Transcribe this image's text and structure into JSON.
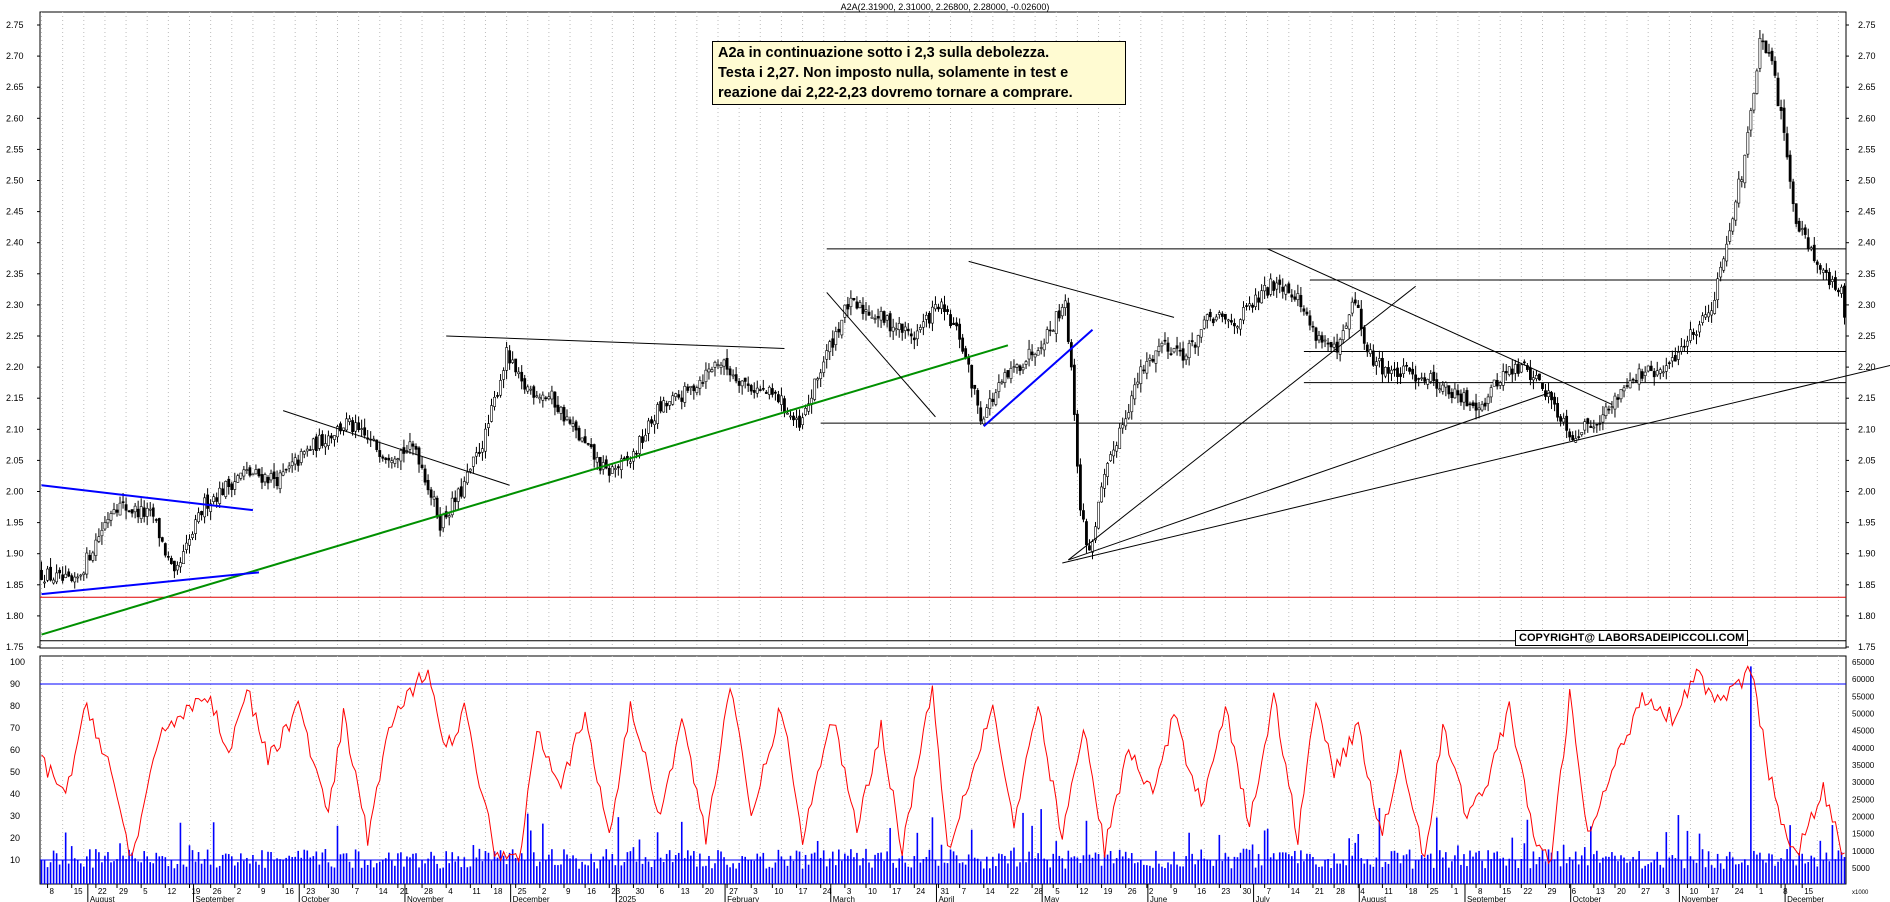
{
  "header": {
    "title": "A2A(2.31900, 2.31000, 2.26800, 2.28000, -0.02600)"
  },
  "annotation": {
    "lines": [
      "A2a in continuazione sotto i 2,3 sulla debolezza.",
      "Testa  i 2,27. Non imposto nulla, solamente in test e",
      "reazione dai 2,22-2,23 dovremo tornare a comprare."
    ]
  },
  "copyright": "COPYRIGHT@ LABORSADEIPICCOLI.COM",
  "colors": {
    "support_line": "#e00000",
    "trend_up": "#009000",
    "channel": "#0000ff",
    "oscillator": "#ff0000",
    "volume": "#0000ff",
    "grid": "#bdbdbd"
  },
  "chart_data": [
    {
      "type": "candlestick",
      "title": "A2A",
      "ylim": [
        1.75,
        2.75
      ],
      "y_ticks": [
        "1.75",
        "1.80",
        "1.85",
        "1.90",
        "1.95",
        "2.00",
        "2.05",
        "2.10",
        "2.15",
        "2.20",
        "2.25",
        "2.30",
        "2.35",
        "2.40",
        "2.45",
        "2.50",
        "2.55",
        "2.60",
        "2.65",
        "2.70",
        "2.75"
      ],
      "anchors": [
        [
          0,
          1.87
        ],
        [
          12,
          1.85
        ],
        [
          25,
          1.98
        ],
        [
          38,
          1.96
        ],
        [
          45,
          1.86
        ],
        [
          55,
          1.98
        ],
        [
          68,
          2.03
        ],
        [
          80,
          2.02
        ],
        [
          90,
          2.07
        ],
        [
          102,
          2.11
        ],
        [
          115,
          2.06
        ],
        [
          125,
          2.07
        ],
        [
          133,
          1.95
        ],
        [
          140,
          2.0
        ],
        [
          148,
          2.09
        ],
        [
          155,
          2.22
        ],
        [
          160,
          2.17
        ],
        [
          170,
          2.15
        ],
        [
          180,
          2.08
        ],
        [
          188,
          2.03
        ],
        [
          196,
          2.05
        ],
        [
          205,
          2.13
        ],
        [
          215,
          2.16
        ],
        [
          225,
          2.21
        ],
        [
          235,
          2.17
        ],
        [
          245,
          2.15
        ],
        [
          252,
          2.1
        ],
        [
          260,
          2.21
        ],
        [
          268,
          2.3
        ],
        [
          275,
          2.29
        ],
        [
          282,
          2.27
        ],
        [
          290,
          2.25
        ],
        [
          298,
          2.3
        ],
        [
          305,
          2.25
        ],
        [
          312,
          2.12
        ],
        [
          320,
          2.18
        ],
        [
          328,
          2.22
        ],
        [
          335,
          2.26
        ],
        [
          340,
          2.31
        ],
        [
          343,
          2.13
        ],
        [
          345,
          1.97
        ],
        [
          348,
          1.9
        ],
        [
          352,
          2.0
        ],
        [
          358,
          2.1
        ],
        [
          365,
          2.19
        ],
        [
          372,
          2.24
        ],
        [
          380,
          2.22
        ],
        [
          388,
          2.28
        ],
        [
          396,
          2.27
        ],
        [
          404,
          2.31
        ],
        [
          410,
          2.34
        ],
        [
          416,
          2.32
        ],
        [
          422,
          2.26
        ],
        [
          430,
          2.22
        ],
        [
          436,
          2.31
        ],
        [
          440,
          2.22
        ],
        [
          448,
          2.19
        ],
        [
          455,
          2.19
        ],
        [
          462,
          2.18
        ],
        [
          470,
          2.15
        ],
        [
          478,
          2.14
        ],
        [
          485,
          2.19
        ],
        [
          492,
          2.2
        ],
        [
          498,
          2.17
        ],
        [
          503,
          2.13
        ],
        [
          508,
          2.09
        ],
        [
          514,
          2.11
        ],
        [
          520,
          2.13
        ],
        [
          526,
          2.18
        ],
        [
          532,
          2.19
        ],
        [
          538,
          2.19
        ],
        [
          545,
          2.24
        ],
        [
          550,
          2.27
        ],
        [
          555,
          2.31
        ],
        [
          560,
          2.43
        ],
        [
          565,
          2.53
        ],
        [
          570,
          2.72
        ],
        [
          574,
          2.69
        ],
        [
          578,
          2.57
        ],
        [
          582,
          2.44
        ],
        [
          586,
          2.4
        ],
        [
          590,
          2.36
        ],
        [
          594,
          2.33
        ],
        [
          597,
          2.32
        ]
      ],
      "last_close": 2.28,
      "horizontal_levels": [
        2.39,
        2.34,
        2.225,
        2.175,
        2.11,
        1.83,
        1.76
      ],
      "support_line_value": 1.83,
      "trend_lines": [
        {
          "color": "green",
          "from": [
            0,
            1.77
          ],
          "to": [
            320,
            2.235
          ]
        },
        {
          "color": "blue",
          "from": [
            0,
            2.01
          ],
          "to": [
            70,
            1.97
          ]
        },
        {
          "color": "blue",
          "from": [
            0,
            1.835
          ],
          "to": [
            72,
            1.87
          ]
        },
        {
          "color": "blue",
          "from": [
            312,
            2.105
          ],
          "to": [
            348,
            2.26
          ]
        },
        {
          "color": "black",
          "from": [
            80,
            2.13
          ],
          "to": [
            155,
            2.01
          ]
        },
        {
          "color": "black",
          "from": [
            134,
            2.25
          ],
          "to": [
            246,
            2.23
          ]
        },
        {
          "color": "black",
          "from": [
            260,
            2.32
          ],
          "to": [
            296,
            2.12
          ]
        },
        {
          "color": "black",
          "from": [
            307,
            2.37
          ],
          "to": [
            375,
            2.28
          ]
        },
        {
          "color": "black",
          "from": [
            406,
            2.39
          ],
          "to": [
            520,
            2.14
          ]
        },
        {
          "color": "black",
          "from": [
            340,
            1.89
          ],
          "to": [
            455,
            2.33
          ]
        },
        {
          "color": "black",
          "from": [
            340,
            1.89
          ],
          "to": [
            500,
            2.16
          ]
        },
        {
          "color": "black",
          "from": [
            338,
            1.885
          ],
          "to": [
            640,
            2.235
          ]
        }
      ],
      "x_axis": {
        "day_ticks": [
          "8",
          "15",
          "22",
          "29",
          "5",
          "12",
          "19",
          "26",
          "2",
          "9",
          "16",
          "23",
          "30",
          "7",
          "14",
          "21",
          "28",
          "4",
          "11",
          "18",
          "25",
          "2",
          "9",
          "16",
          "23",
          "30",
          "6",
          "13",
          "20",
          "27",
          "3",
          "10",
          "17",
          "24",
          "3",
          "10",
          "17",
          "24",
          "31",
          "7",
          "14",
          "22",
          "28",
          "5",
          "12",
          "19",
          "26",
          "2",
          "9",
          "16",
          "23",
          "30",
          "7",
          "14",
          "21",
          "28",
          "4",
          "11",
          "18",
          "25",
          "1",
          "8",
          "15",
          "22",
          "29",
          "6",
          "13",
          "20",
          "27",
          "3",
          "10",
          "17",
          "24",
          "1",
          "8",
          "15"
        ],
        "months": [
          "August",
          "September",
          "October",
          "November",
          "December",
          "2025",
          "February",
          "March",
          "April",
          "May",
          "June",
          "July",
          "August",
          "September",
          "October",
          "November",
          "December"
        ]
      }
    },
    {
      "type": "line+bar",
      "ylim": [
        0,
        100
      ],
      "y_ticks": [
        "10",
        "20",
        "30",
        "40",
        "50",
        "60",
        "70",
        "80",
        "90",
        "100"
      ],
      "right_ticks": [
        "5000",
        "10000",
        "15000",
        "20000",
        "25000",
        "30000",
        "35000",
        "40000",
        "45000",
        "50000",
        "55000",
        "60000",
        "65000"
      ],
      "right_unit": "x1000",
      "oscillator_reference_level": 90,
      "volume_reference_level": 10,
      "oscillator_anchors": [
        [
          0,
          55
        ],
        [
          8,
          40
        ],
        [
          15,
          80
        ],
        [
          22,
          55
        ],
        [
          30,
          10
        ],
        [
          40,
          70
        ],
        [
          55,
          85
        ],
        [
          62,
          60
        ],
        [
          68,
          88
        ],
        [
          75,
          55
        ],
        [
          85,
          80
        ],
        [
          95,
          30
        ],
        [
          100,
          75
        ],
        [
          108,
          20
        ],
        [
          115,
          70
        ],
        [
          128,
          98
        ],
        [
          134,
          60
        ],
        [
          140,
          78
        ],
        [
          150,
          15
        ],
        [
          158,
          10
        ],
        [
          164,
          70
        ],
        [
          172,
          45
        ],
        [
          180,
          75
        ],
        [
          188,
          20
        ],
        [
          195,
          80
        ],
        [
          205,
          30
        ],
        [
          212,
          75
        ],
        [
          220,
          20
        ],
        [
          228,
          90
        ],
        [
          235,
          30
        ],
        [
          245,
          80
        ],
        [
          252,
          20
        ],
        [
          262,
          75
        ],
        [
          270,
          25
        ],
        [
          278,
          70
        ],
        [
          285,
          15
        ],
        [
          295,
          90
        ],
        [
          300,
          15
        ],
        [
          308,
          50
        ],
        [
          315,
          80
        ],
        [
          322,
          25
        ],
        [
          330,
          80
        ],
        [
          338,
          20
        ],
        [
          345,
          70
        ],
        [
          352,
          15
        ],
        [
          360,
          60
        ],
        [
          368,
          40
        ],
        [
          375,
          75
        ],
        [
          384,
          35
        ],
        [
          392,
          80
        ],
        [
          400,
          25
        ],
        [
          408,
          85
        ],
        [
          416,
          20
        ],
        [
          422,
          85
        ],
        [
          428,
          50
        ],
        [
          436,
          70
        ],
        [
          444,
          20
        ],
        [
          450,
          60
        ],
        [
          458,
          10
        ],
        [
          464,
          70
        ],
        [
          472,
          30
        ],
        [
          480,
          50
        ],
        [
          486,
          80
        ],
        [
          494,
          20
        ],
        [
          500,
          10
        ],
        [
          506,
          85
        ],
        [
          512,
          20
        ],
        [
          520,
          50
        ],
        [
          530,
          85
        ],
        [
          540,
          75
        ],
        [
          548,
          95
        ],
        [
          556,
          80
        ],
        [
          566,
          97
        ],
        [
          572,
          50
        ],
        [
          576,
          25
        ],
        [
          582,
          15
        ],
        [
          590,
          42
        ],
        [
          597,
          10
        ]
      ]
    }
  ]
}
